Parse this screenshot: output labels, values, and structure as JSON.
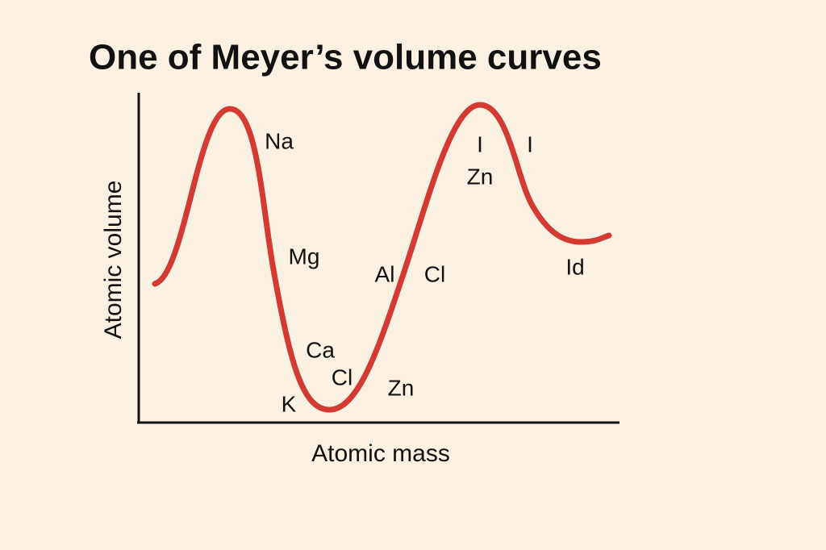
{
  "title": "One of Meyer’s volume curves",
  "x_axis_label": "Atomic mass",
  "y_axis_label": "Atomic volume",
  "labels": [
    "Na",
    "Mg",
    "Ca",
    "Cl",
    "K",
    "Zn",
    "Al",
    "Cl",
    "I",
    "Zn",
    "I",
    "Id"
  ]
}
